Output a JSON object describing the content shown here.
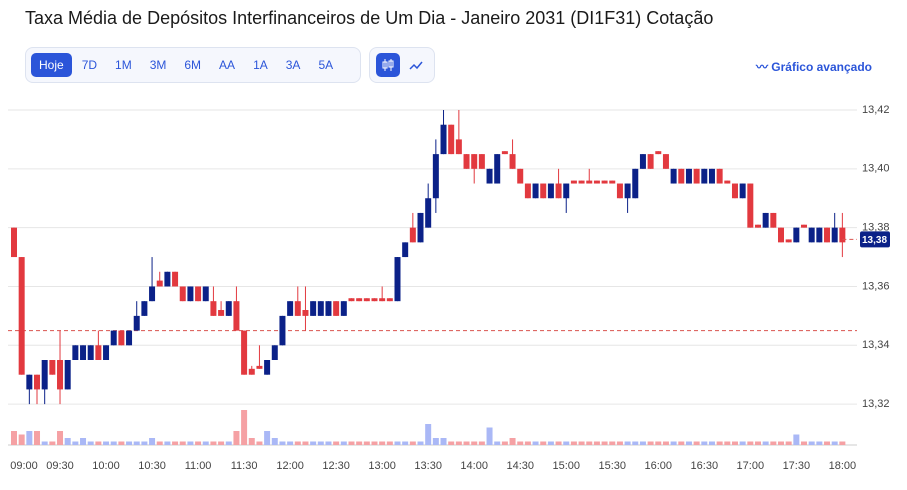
{
  "header": {
    "title": "Taxa Média de Depósitos Interfinanceiros de Um Dia - Janeiro 2031 (DI1F31) Cotação"
  },
  "toolbar": {
    "ranges": [
      "Hoje",
      "7D",
      "1M",
      "3M",
      "6M",
      "AA",
      "1A",
      "3A",
      "5A"
    ],
    "advanced": "Gráfico avançado"
  },
  "chart_data": {
    "type": "candlestick",
    "categories": [
      "09:00",
      null,
      null,
      null,
      null,
      null,
      "09:30",
      null,
      null,
      null,
      null,
      null,
      "10:00",
      null,
      null,
      null,
      null,
      null,
      "10:30",
      null,
      null,
      null,
      null,
      null,
      "11:00",
      null,
      null,
      null,
      null,
      null,
      "11:30",
      null,
      null,
      null,
      null,
      null,
      "12:00",
      null,
      null,
      null,
      null,
      null,
      "12:30",
      null,
      null,
      null,
      null,
      null,
      "13:00",
      null,
      null,
      null,
      null,
      null,
      "13:30",
      null,
      null,
      null,
      null,
      null,
      "14:00",
      null,
      null,
      null,
      null,
      null,
      "14:30",
      null,
      null,
      null,
      null,
      null,
      "15:00",
      null,
      null,
      null,
      null,
      null,
      "15:30",
      null,
      null,
      null,
      null,
      null,
      "16:00",
      null,
      null,
      null,
      null,
      null,
      "16:30",
      null,
      null,
      null,
      null,
      null,
      "17:00",
      null,
      null,
      null,
      null,
      null,
      "17:30",
      null,
      null,
      null,
      null,
      null,
      "18:00"
    ],
    "open": [
      13.38,
      13.37,
      13.325,
      13.33,
      13.325,
      13.335,
      13.335,
      13.325,
      13.335,
      13.335,
      13.335,
      13.34,
      13.335,
      13.34,
      13.345,
      13.34,
      13.345,
      13.35,
      13.355,
      13.362,
      13.36,
      13.365,
      13.36,
      13.355,
      13.36,
      13.355,
      13.355,
      13.352,
      13.35,
      13.355,
      13.345,
      13.332,
      13.333,
      13.33,
      13.335,
      13.34,
      13.35,
      13.355,
      13.352,
      13.35,
      13.35,
      13.35,
      13.355,
      13.35,
      13.356,
      13.356,
      13.356,
      13.356,
      13.356,
      13.356,
      13.355,
      13.37,
      13.38,
      13.375,
      13.38,
      13.39,
      13.405,
      13.415,
      13.41,
      13.405,
      13.405,
      13.405,
      13.395,
      13.395,
      13.406,
      13.405,
      13.4,
      13.395,
      13.39,
      13.395,
      13.39,
      13.395,
      13.39,
      13.396,
      13.396,
      13.396,
      13.396,
      13.396,
      13.396,
      13.395,
      13.39,
      13.39,
      13.4,
      13.405,
      13.406,
      13.405,
      13.395,
      13.4,
      13.395,
      13.4,
      13.395,
      13.395,
      13.4,
      13.396,
      13.395,
      13.39,
      13.395,
      13.381,
      13.38,
      13.385,
      13.38,
      13.376,
      13.375,
      13.381,
      13.375,
      13.375,
      13.38,
      13.375,
      13.38
    ],
    "high": [
      13.38,
      13.37,
      13.33,
      13.33,
      13.335,
      13.335,
      13.345,
      13.335,
      13.34,
      13.34,
      13.34,
      13.345,
      13.34,
      13.345,
      13.345,
      13.345,
      13.355,
      13.355,
      13.37,
      13.365,
      13.365,
      13.365,
      13.36,
      13.36,
      13.36,
      13.36,
      13.36,
      13.355,
      13.355,
      13.36,
      13.345,
      13.333,
      13.34,
      13.335,
      13.34,
      13.35,
      13.355,
      13.36,
      13.36,
      13.355,
      13.355,
      13.355,
      13.355,
      13.355,
      13.356,
      13.356,
      13.356,
      13.356,
      13.36,
      13.356,
      13.37,
      13.375,
      13.385,
      13.385,
      13.395,
      13.41,
      13.42,
      13.415,
      13.42,
      13.405,
      13.405,
      13.405,
      13.4,
      13.405,
      13.406,
      13.41,
      13.4,
      13.395,
      13.395,
      13.395,
      13.395,
      13.4,
      13.395,
      13.396,
      13.396,
      13.4,
      13.396,
      13.396,
      13.396,
      13.395,
      13.395,
      13.4,
      13.405,
      13.405,
      13.406,
      13.405,
      13.4,
      13.4,
      13.4,
      13.4,
      13.4,
      13.4,
      13.4,
      13.396,
      13.395,
      13.395,
      13.395,
      13.381,
      13.385,
      13.385,
      13.38,
      13.376,
      13.38,
      13.381,
      13.38,
      13.38,
      13.38,
      13.385,
      13.385
    ],
    "low": [
      13.37,
      13.33,
      13.32,
      13.32,
      13.32,
      13.33,
      13.32,
      13.325,
      13.335,
      13.335,
      13.335,
      13.335,
      13.335,
      13.34,
      13.34,
      13.34,
      13.345,
      13.35,
      13.355,
      13.36,
      13.36,
      13.36,
      13.355,
      13.355,
      13.355,
      13.355,
      13.35,
      13.35,
      13.35,
      13.345,
      13.33,
      13.33,
      13.332,
      13.33,
      13.335,
      13.34,
      13.35,
      13.35,
      13.345,
      13.35,
      13.35,
      13.35,
      13.35,
      13.35,
      13.355,
      13.355,
      13.355,
      13.355,
      13.355,
      13.355,
      13.355,
      13.37,
      13.375,
      13.375,
      13.38,
      13.385,
      13.405,
      13.405,
      13.405,
      13.4,
      13.395,
      13.4,
      13.395,
      13.395,
      13.405,
      13.4,
      13.395,
      13.39,
      13.39,
      13.39,
      13.39,
      13.39,
      13.385,
      13.395,
      13.395,
      13.395,
      13.395,
      13.395,
      13.395,
      13.39,
      13.385,
      13.39,
      13.4,
      13.4,
      13.405,
      13.4,
      13.395,
      13.395,
      13.395,
      13.395,
      13.395,
      13.395,
      13.395,
      13.395,
      13.39,
      13.39,
      13.38,
      13.38,
      13.38,
      13.38,
      13.375,
      13.375,
      13.375,
      13.38,
      13.375,
      13.375,
      13.375,
      13.375,
      13.37
    ],
    "close": [
      13.37,
      13.33,
      13.33,
      13.325,
      13.335,
      13.33,
      13.325,
      13.335,
      13.34,
      13.34,
      13.34,
      13.335,
      13.34,
      13.345,
      13.34,
      13.345,
      13.35,
      13.355,
      13.36,
      13.36,
      13.365,
      13.36,
      13.355,
      13.36,
      13.355,
      13.36,
      13.35,
      13.35,
      13.355,
      13.345,
      13.33,
      13.33,
      13.332,
      13.335,
      13.34,
      13.35,
      13.355,
      13.35,
      13.35,
      13.355,
      13.355,
      13.355,
      13.35,
      13.355,
      13.355,
      13.355,
      13.355,
      13.355,
      13.355,
      13.355,
      13.37,
      13.375,
      13.375,
      13.385,
      13.39,
      13.405,
      13.415,
      13.405,
      13.405,
      13.4,
      13.4,
      13.4,
      13.4,
      13.405,
      13.405,
      13.4,
      13.395,
      13.39,
      13.395,
      13.39,
      13.395,
      13.39,
      13.395,
      13.395,
      13.395,
      13.395,
      13.395,
      13.395,
      13.395,
      13.39,
      13.395,
      13.4,
      13.405,
      13.4,
      13.405,
      13.4,
      13.4,
      13.395,
      13.4,
      13.395,
      13.4,
      13.4,
      13.395,
      13.395,
      13.39,
      13.395,
      13.38,
      13.38,
      13.385,
      13.38,
      13.375,
      13.375,
      13.38,
      13.38,
      13.38,
      13.38,
      13.375,
      13.38,
      13.375
    ],
    "volume": [
      4,
      3,
      4,
      4,
      1,
      1,
      4,
      2,
      1,
      2,
      1,
      1,
      1,
      1,
      1,
      1,
      1,
      1,
      2,
      1,
      1,
      1,
      1,
      1,
      1,
      1,
      1,
      1,
      1,
      4,
      10,
      2,
      1,
      4,
      2,
      1,
      1,
      1,
      1,
      1,
      1,
      1,
      1,
      1,
      1,
      1,
      1,
      1,
      1,
      1,
      1,
      1,
      1,
      1,
      6,
      2,
      2,
      1,
      1,
      1,
      1,
      1,
      5,
      1,
      1,
      2,
      1,
      1,
      1,
      1,
      1,
      1,
      1,
      1,
      1,
      1,
      1,
      1,
      1,
      1,
      1,
      1,
      1,
      1,
      1,
      1,
      1,
      1,
      1,
      1,
      1,
      1,
      1,
      1,
      1,
      1,
      1,
      1,
      1,
      1,
      1,
      1,
      3,
      1,
      1,
      1,
      1,
      1,
      1
    ],
    "volume_lim": [
      0,
      10
    ],
    "ylim": [
      13.318,
      13.4234
    ],
    "yticks": [
      {
        "value": 13.32,
        "label": "13,32"
      },
      {
        "value": 13.34,
        "label": "13,34"
      },
      {
        "value": 13.36,
        "label": "13,36"
      },
      {
        "value": 13.38,
        "label": "13,38"
      },
      {
        "value": 13.4,
        "label": "13,40"
      },
      {
        "value": 13.42,
        "label": "13,42"
      }
    ],
    "last_price": {
      "value": 13.376,
      "label": "13,38"
    },
    "previous_close": 13.345,
    "grid": true,
    "up_color": "#0b2188",
    "down_color": "#e2393f",
    "up_volume_color": "#aab8f6",
    "down_volume_color": "#f5a1a4"
  }
}
